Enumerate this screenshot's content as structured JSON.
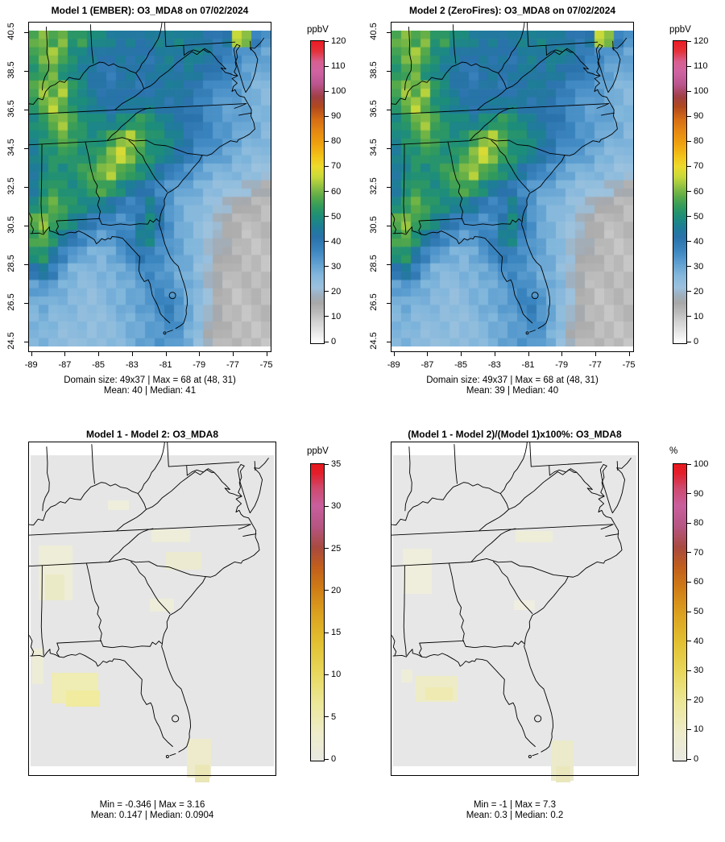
{
  "figure": {
    "background": "#ffffff"
  },
  "panels": [
    {
      "id": "model1",
      "title": "Model 1 (EMBER): O3_MDA8 on 07/02/2024",
      "colorbar_unit": "ppbV",
      "caption_line1": "Domain size: 49x37 | Max = 68 at (48, 31)",
      "caption_line2": "Mean: 40 |  Median: 41"
    },
    {
      "id": "model2",
      "title": "Model 2 (ZeroFires): O3_MDA8 on 07/02/2024",
      "colorbar_unit": "ppbV",
      "caption_line1": "Domain size: 49x37 | Max = 68 at (48, 31)",
      "caption_line2": "Mean: 39 |  Median: 40"
    },
    {
      "id": "diff",
      "title": "Model 1 - Model 2: O3_MDA8",
      "colorbar_unit": "ppbV",
      "caption_line1": "Min = -0.346 | Max = 3.16",
      "caption_line2": "Mean: 0.147 |  Median: 0.0904"
    },
    {
      "id": "pct",
      "title": "(Model 1 - Model 2)/(Model 1)x100%: O3_MDA8",
      "colorbar_unit": "%",
      "caption_line1": "Min = -1 | Max = 7.3",
      "caption_line2": "Mean: 0.3 |  Median: 0.2"
    }
  ],
  "axes": {
    "lat_ticks": [
      "40.5",
      "38.5",
      "36.5",
      "34.5",
      "32.5",
      "30.5",
      "28.5",
      "26.5",
      "24.5"
    ],
    "lon_ticks": [
      "-89",
      "-87",
      "-85",
      "-83",
      "-81",
      "-79",
      "-77",
      "-75"
    ]
  },
  "chart_data": [
    {
      "id": "model1",
      "type": "heatmap",
      "title": "Model 1 (EMBER): O3_MDA8 on 07/02/2024",
      "units": "ppbV",
      "domain_size": "49x37",
      "max": 68,
      "max_at": "(48, 31)",
      "mean": 40,
      "median": 41,
      "lat_tick_values": [
        40.5,
        38.5,
        36.5,
        34.5,
        32.5,
        30.5,
        28.5,
        26.5,
        24.5
      ],
      "lon_tick_values": [
        -89,
        -87,
        -85,
        -83,
        -81,
        -79,
        -77,
        -75
      ],
      "colorbar": {
        "min": 0,
        "max": 120,
        "step": 10,
        "stops": [
          [
            0,
            "#ffffff"
          ],
          [
            4,
            "#e9e9e9"
          ],
          [
            8,
            "#d4d4d4"
          ],
          [
            12,
            "#bcbcbc"
          ],
          [
            16,
            "#a8a8a8"
          ],
          [
            19,
            "#9fb0bf"
          ],
          [
            22,
            "#9cc2de"
          ],
          [
            27,
            "#83b7dc"
          ],
          [
            32,
            "#5d9ed0"
          ],
          [
            37,
            "#3b85c0"
          ],
          [
            42,
            "#2a72ab"
          ],
          [
            46,
            "#1e7d97"
          ],
          [
            50,
            "#1d8d7b"
          ],
          [
            54,
            "#309a5e"
          ],
          [
            58,
            "#58aa49"
          ],
          [
            62,
            "#8ec043"
          ],
          [
            66,
            "#c8d93a"
          ],
          [
            70,
            "#ecdb2e"
          ],
          [
            74,
            "#f3c51a"
          ],
          [
            79,
            "#efa30f"
          ],
          [
            84,
            "#e78a12"
          ],
          [
            89,
            "#d66d15"
          ],
          [
            94,
            "#b1491f"
          ],
          [
            98,
            "#a03f45"
          ],
          [
            103,
            "#bb5590"
          ],
          [
            108,
            "#d064a3"
          ],
          [
            112,
            "#d95f90"
          ],
          [
            116,
            "#e5333c"
          ],
          [
            120,
            "#ec1c24"
          ]
        ]
      },
      "values_est_ppbv": [
        [
          58,
          62,
          55,
          60,
          52,
          55,
          50,
          48,
          46,
          44,
          46,
          44,
          44,
          46,
          46,
          48,
          46,
          44,
          42,
          40,
          44,
          66,
          60,
          38,
          34
        ],
        [
          55,
          60,
          64,
          56,
          50,
          48,
          46,
          44,
          42,
          44,
          42,
          44,
          42,
          44,
          46,
          44,
          46,
          48,
          44,
          40,
          38,
          36,
          34,
          32,
          30
        ],
        [
          52,
          56,
          60,
          52,
          48,
          46,
          44,
          42,
          40,
          42,
          44,
          42,
          44,
          46,
          44,
          42,
          46,
          44,
          42,
          40,
          36,
          34,
          32,
          30,
          29
        ],
        [
          56,
          62,
          58,
          64,
          54,
          48,
          44,
          42,
          42,
          44,
          42,
          40,
          42,
          44,
          46,
          44,
          42,
          40,
          38,
          36,
          34,
          32,
          30,
          28,
          27
        ],
        [
          54,
          58,
          64,
          58,
          52,
          50,
          46,
          44,
          42,
          44,
          46,
          44,
          46,
          44,
          42,
          44,
          40,
          38,
          36,
          34,
          32,
          31,
          30,
          28,
          27
        ],
        [
          50,
          54,
          58,
          62,
          56,
          52,
          50,
          48,
          46,
          50,
          52,
          55,
          50,
          48,
          46,
          44,
          42,
          40,
          36,
          34,
          33,
          32,
          30,
          28,
          27
        ],
        [
          48,
          52,
          55,
          58,
          54,
          52,
          50,
          52,
          55,
          60,
          64,
          58,
          52,
          50,
          48,
          46,
          42,
          38,
          36,
          34,
          33,
          31,
          29,
          28,
          26
        ],
        [
          46,
          50,
          52,
          55,
          52,
          50,
          52,
          56,
          62,
          66,
          60,
          55,
          52,
          50,
          46,
          42,
          40,
          36,
          34,
          32,
          30,
          28,
          27,
          26,
          25
        ],
        [
          44,
          48,
          52,
          50,
          52,
          54,
          56,
          60,
          64,
          58,
          54,
          50,
          48,
          44,
          40,
          36,
          34,
          32,
          30,
          28,
          27,
          26,
          25,
          24,
          23
        ],
        [
          46,
          50,
          54,
          52,
          50,
          52,
          54,
          56,
          54,
          50,
          46,
          42,
          40,
          36,
          34,
          32,
          30,
          28,
          26,
          25,
          24,
          22,
          20,
          18,
          16
        ],
        [
          50,
          55,
          58,
          54,
          52,
          50,
          48,
          46,
          44,
          40,
          38,
          40,
          46,
          40,
          34,
          30,
          28,
          26,
          24,
          22,
          20,
          17,
          15,
          13,
          12
        ],
        [
          58,
          62,
          56,
          52,
          48,
          44,
          40,
          38,
          36,
          34,
          36,
          44,
          50,
          42,
          34,
          30,
          28,
          26,
          22,
          19,
          16,
          14,
          13,
          12,
          12
        ],
        [
          55,
          58,
          52,
          46,
          40,
          36,
          34,
          32,
          34,
          36,
          38,
          46,
          48,
          38,
          33,
          30,
          28,
          26,
          22,
          18,
          16,
          14,
          12,
          12,
          12
        ],
        [
          50,
          52,
          44,
          38,
          34,
          30,
          28,
          27,
          30,
          34,
          36,
          40,
          38,
          36,
          34,
          30,
          28,
          26,
          22,
          18,
          15,
          13,
          12,
          12,
          12
        ],
        [
          42,
          44,
          38,
          32,
          28,
          27,
          26,
          27,
          28,
          30,
          32,
          34,
          36,
          34,
          33,
          30,
          28,
          24,
          20,
          16,
          14,
          12,
          12,
          12,
          12
        ],
        [
          32,
          34,
          30,
          28,
          27,
          26,
          25,
          26,
          27,
          28,
          30,
          32,
          34,
          36,
          34,
          32,
          30,
          26,
          20,
          16,
          13,
          12,
          12,
          12,
          12
        ],
        [
          28,
          30,
          28,
          27,
          26,
          25,
          25,
          26,
          27,
          28,
          30,
          32,
          34,
          36,
          38,
          34,
          30,
          26,
          20,
          15,
          13,
          12,
          12,
          12,
          12
        ],
        [
          27,
          28,
          27,
          26,
          25,
          25,
          24,
          25,
          26,
          27,
          28,
          30,
          32,
          34,
          36,
          34,
          30,
          26,
          20,
          15,
          13,
          12,
          12,
          12,
          12
        ],
        [
          26,
          27,
          26,
          25,
          25,
          24,
          24,
          25,
          26,
          27,
          28,
          30,
          32,
          34,
          34,
          32,
          28,
          24,
          18,
          14,
          12,
          12,
          12,
          12,
          12
        ]
      ]
    },
    {
      "id": "model2",
      "type": "heatmap",
      "title": "Model 2 (ZeroFires): O3_MDA8 on 07/02/2024",
      "units": "ppbV",
      "domain_size": "49x37",
      "max": 68,
      "max_at": "(48, 31)",
      "mean": 39,
      "median": 40,
      "colorbar": {
        "min": 0,
        "max": 120,
        "step": 10
      },
      "values_ref": "model1"
    },
    {
      "id": "diff",
      "type": "heatmap",
      "title": "Model 1 - Model 2: O3_MDA8",
      "units": "ppbV",
      "min": -0.346,
      "max": 3.16,
      "mean": 0.147,
      "median": 0.0904,
      "background": "#e6e6e6",
      "colorbar": {
        "min": 0,
        "max": 35,
        "step": 5,
        "stops_frac": [
          [
            0,
            "#e9e9e2"
          ],
          [
            0.09,
            "#eeeccb"
          ],
          [
            0.2,
            "#ece795"
          ],
          [
            0.3,
            "#e8d75a"
          ],
          [
            0.4,
            "#e2c030"
          ],
          [
            0.5,
            "#dba01f"
          ],
          [
            0.58,
            "#d07d16"
          ],
          [
            0.65,
            "#c2601b"
          ],
          [
            0.72,
            "#a94a40"
          ],
          [
            0.79,
            "#b65583"
          ],
          [
            0.86,
            "#c95f9e"
          ],
          [
            0.92,
            "#cf4a6e"
          ],
          [
            0.97,
            "#e31f2b"
          ],
          [
            1,
            "#e8191f"
          ]
        ]
      },
      "patches": [
        [
          10,
          112,
          42,
          68,
          "#eeedd8"
        ],
        [
          18,
          148,
          24,
          32,
          "#ebeac6"
        ],
        [
          2,
          240,
          14,
          44,
          "#edecd7"
        ],
        [
          150,
          92,
          48,
          16,
          "#eeedda"
        ],
        [
          168,
          120,
          44,
          22,
          "#ecebd2"
        ],
        [
          148,
          178,
          30,
          16,
          "#eeedda"
        ],
        [
          26,
          270,
          58,
          38,
          "#efecb4"
        ],
        [
          44,
          292,
          42,
          20,
          "#f0eb9e"
        ],
        [
          194,
          352,
          30,
          48,
          "#edebcc"
        ],
        [
          204,
          384,
          18,
          22,
          "#eae6b6"
        ],
        [
          96,
          56,
          26,
          12,
          "#efeedd"
        ]
      ]
    },
    {
      "id": "pct",
      "type": "heatmap",
      "title": "(Model 1 - Model 2)/(Model 1)x100%: O3_MDA8",
      "units": "%",
      "min": -1,
      "max": 7.3,
      "mean": 0.3,
      "median": 0.2,
      "background": "#e7e7e7",
      "colorbar": {
        "min": 0,
        "max": 100,
        "step": 10
      },
      "patches": [
        [
          12,
          116,
          36,
          56,
          "#efeedd"
        ],
        [
          152,
          94,
          46,
          14,
          "#eeedd8"
        ],
        [
          28,
          274,
          52,
          32,
          "#eeecc6"
        ],
        [
          40,
          288,
          34,
          16,
          "#eeeab2"
        ],
        [
          10,
          266,
          14,
          16,
          "#eeedd8"
        ],
        [
          196,
          354,
          28,
          50,
          "#ebeacb"
        ],
        [
          202,
          386,
          18,
          20,
          "#eae7bd"
        ],
        [
          150,
          180,
          26,
          12,
          "#efeee0"
        ]
      ]
    }
  ]
}
